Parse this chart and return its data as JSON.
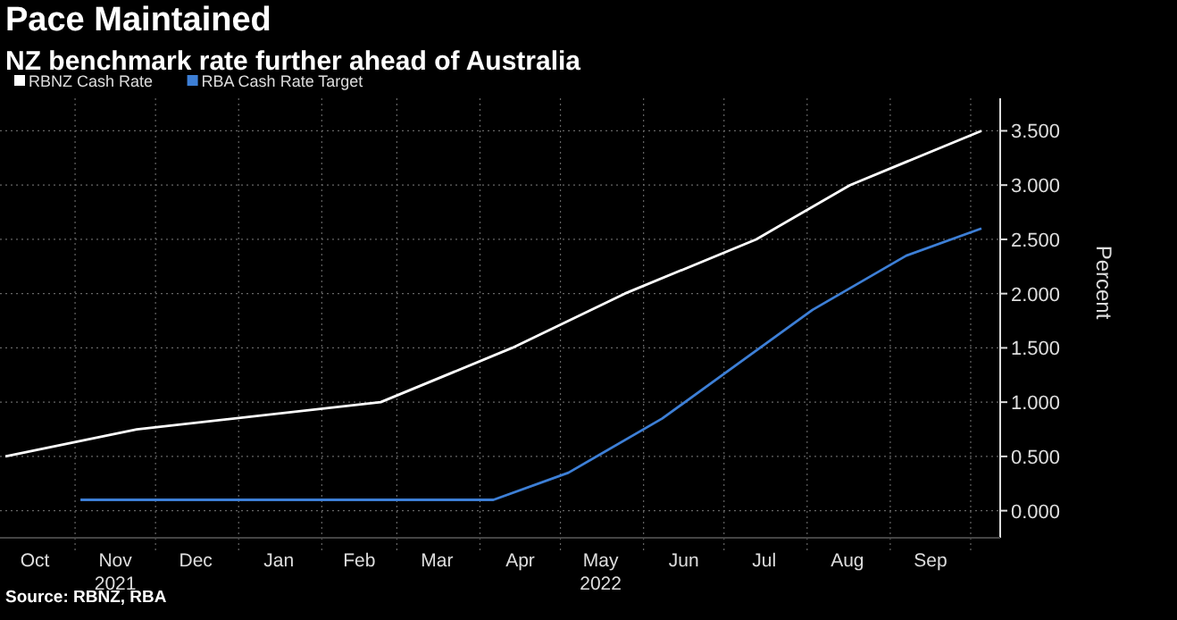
{
  "chart_data": {
    "type": "line",
    "title": "Pace Maintained",
    "subtitle": "NZ benchmark rate further ahead of Australia",
    "ylabel": "Percent",
    "series": [
      {
        "name": "RBNZ Cash Rate",
        "color": "#ffffff",
        "x": [
          "2021-10-06",
          "2021-11-24",
          "2022-02-23",
          "2022-04-13",
          "2022-05-25",
          "2022-07-13",
          "2022-08-17",
          "2022-10-05"
        ],
        "values": [
          0.5,
          0.75,
          1.0,
          1.5,
          2.0,
          2.5,
          3.0,
          3.5
        ]
      },
      {
        "name": "RBA Cash Rate Target",
        "color": "#3d7fd6",
        "x": [
          "2021-11-03",
          "2022-04-06",
          "2022-05-04",
          "2022-06-08",
          "2022-07-06",
          "2022-08-03",
          "2022-09-07",
          "2022-10-05"
        ],
        "values": [
          0.1,
          0.1,
          0.35,
          0.85,
          1.35,
          1.85,
          2.35,
          2.6
        ]
      }
    ],
    "xlim": [
      "2021-10-04",
      "2022-10-12"
    ],
    "xticks": [
      {
        "value": "2021-10-17",
        "label": "Oct"
      },
      {
        "value": "2021-11-01",
        "label": null
      },
      {
        "value": "2021-11-16",
        "label": "Nov\n2021"
      },
      {
        "value": "2021-12-01",
        "label": null
      },
      {
        "value": "2021-12-16",
        "label": "Dec"
      },
      {
        "value": "2022-01-01",
        "label": null
      },
      {
        "value": "2022-01-16",
        "label": "Jan"
      },
      {
        "value": "2022-02-01",
        "label": null
      },
      {
        "value": "2022-02-15",
        "label": "Feb"
      },
      {
        "value": "2022-03-01",
        "label": null
      },
      {
        "value": "2022-03-16",
        "label": "Mar"
      },
      {
        "value": "2022-04-01",
        "label": null
      },
      {
        "value": "2022-04-16",
        "label": "Apr"
      },
      {
        "value": "2022-05-01",
        "label": null
      },
      {
        "value": "2022-05-16",
        "label": "May\n2022"
      },
      {
        "value": "2022-06-01",
        "label": null
      },
      {
        "value": "2022-06-16",
        "label": "Jun"
      },
      {
        "value": "2022-07-01",
        "label": null
      },
      {
        "value": "2022-07-16",
        "label": "Jul"
      },
      {
        "value": "2022-08-01",
        "label": null
      },
      {
        "value": "2022-08-16",
        "label": "Aug"
      },
      {
        "value": "2022-09-01",
        "label": null
      },
      {
        "value": "2022-09-16",
        "label": "Sep"
      },
      {
        "value": "2022-10-01",
        "label": null
      }
    ],
    "ylim": [
      -0.25,
      3.8
    ],
    "yticks": [
      {
        "value": 0,
        "label": "0.000"
      },
      {
        "value": 0.5,
        "label": "0.500"
      },
      {
        "value": 1,
        "label": "1.000"
      },
      {
        "value": 1.5,
        "label": "1.500"
      },
      {
        "value": 2,
        "label": "2.000"
      },
      {
        "value": 2.5,
        "label": "2.500"
      },
      {
        "value": 3,
        "label": "3.000"
      },
      {
        "value": 3.5,
        "label": "3.500"
      }
    ],
    "grid": true,
    "legend": "top left",
    "marker": "none",
    "line_style": "solid",
    "annotations": [
      "Source: RBNZ, RBA"
    ]
  }
}
